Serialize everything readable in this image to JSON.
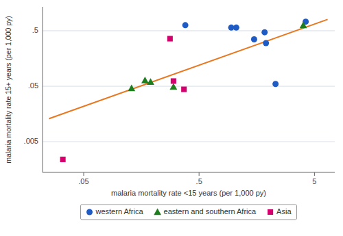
{
  "chart_data": {
    "type": "scatter",
    "log": true,
    "grid": "y",
    "legend": "bottom",
    "xlabel": "malaria mortality rate <15 years (per 1,000 py)",
    "ylabel": "malaria mortality rate 15+ years (per 1,000 py)",
    "xlim": [
      0.022,
      7.5
    ],
    "ylim": [
      0.0014,
      1.35
    ],
    "xticks": [
      {
        "value": 0.05,
        "label": ".05"
      },
      {
        "value": 0.5,
        "label": ".5"
      },
      5
    ],
    "yticks": [
      {
        "value": 0.005,
        "label": ".005"
      },
      {
        "value": 0.05,
        "label": ".05"
      },
      {
        "value": 0.5,
        "label": ".5"
      }
    ],
    "series": [
      {
        "type": "line",
        "color": "#e87820",
        "x": [
          0.025,
          6.5
        ],
        "values": [
          0.013,
          0.8
        ]
      },
      {
        "name": "western Africa",
        "type": "scatter",
        "marker": "circle",
        "color": "#1f5bc4",
        "x": [
          0.38,
          0.95,
          1.05,
          1.5,
          1.85,
          1.9,
          2.3,
          4.2
        ],
        "values": [
          0.63,
          0.57,
          0.57,
          0.35,
          0.47,
          0.3,
          0.055,
          0.73
        ]
      },
      {
        "name": "eastern and southern Africa",
        "type": "scatter",
        "marker": "triangle",
        "color": "#1e7e1e",
        "x": [
          0.13,
          0.17,
          0.19,
          0.3,
          4.0
        ],
        "values": [
          0.046,
          0.064,
          0.06,
          0.049,
          0.63
        ]
      },
      {
        "name": "Asia",
        "type": "scatter",
        "marker": "square",
        "color": "#d4006e",
        "x": [
          0.033,
          0.28,
          0.3,
          0.37
        ],
        "values": [
          0.0024,
          0.36,
          0.062,
          0.044
        ]
      }
    ]
  }
}
